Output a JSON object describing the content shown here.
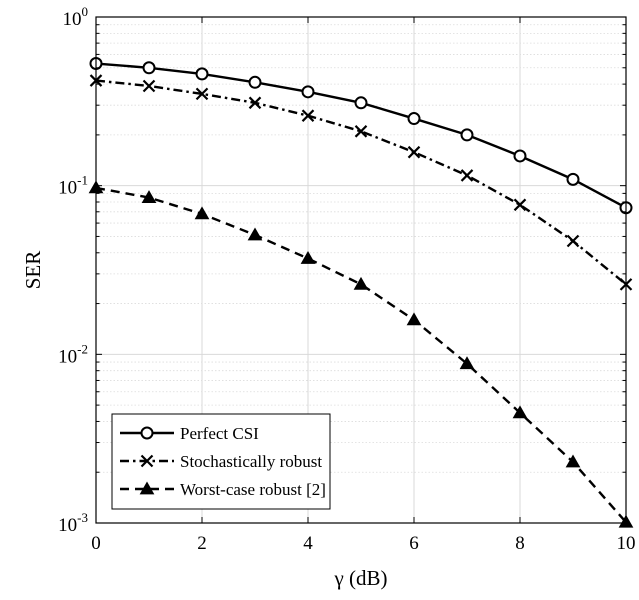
{
  "chart_data": {
    "type": "line",
    "xlabel": "γ (dB)",
    "ylabel": "SER",
    "x_scale": "linear",
    "y_scale": "log",
    "xlim": [
      0,
      10
    ],
    "ylim": [
      0.001,
      1
    ],
    "x_ticks": [
      0,
      2,
      4,
      6,
      8,
      10
    ],
    "x_tick_labels": [
      "0",
      "2",
      "4",
      "6",
      "8",
      "10"
    ],
    "y_ticks": [
      {
        "value": 1,
        "base": "10",
        "exp": "0"
      },
      {
        "value": 0.1,
        "base": "10",
        "exp": "-1"
      },
      {
        "value": 0.01,
        "base": "10",
        "exp": "-2"
      },
      {
        "value": 0.001,
        "base": "10",
        "exp": "-3"
      }
    ],
    "grid": true,
    "legend_position": "bottom-left",
    "x": [
      0,
      1,
      2,
      3,
      4,
      5,
      6,
      7,
      8,
      9,
      10
    ],
    "series": [
      {
        "name": "Perfect CSI",
        "values": [
          0.53,
          0.5,
          0.46,
          0.41,
          0.36,
          0.31,
          0.25,
          0.2,
          0.15,
          0.109,
          0.074
        ],
        "line_style": "solid",
        "marker": "circle",
        "color": "#000000"
      },
      {
        "name": "Stochastically robust",
        "values": [
          0.42,
          0.39,
          0.35,
          0.31,
          0.26,
          0.21,
          0.158,
          0.115,
          0.077,
          0.047,
          0.026
        ],
        "line_style": "dashdot",
        "marker": "x",
        "color": "#000000"
      },
      {
        "name": "Worst-case robust [2]",
        "values": [
          0.097,
          0.085,
          0.068,
          0.051,
          0.037,
          0.026,
          0.016,
          0.0088,
          0.0045,
          0.0023,
          0.00101
        ],
        "line_style": "dashed",
        "marker": "triangle",
        "color": "#000000"
      }
    ]
  }
}
